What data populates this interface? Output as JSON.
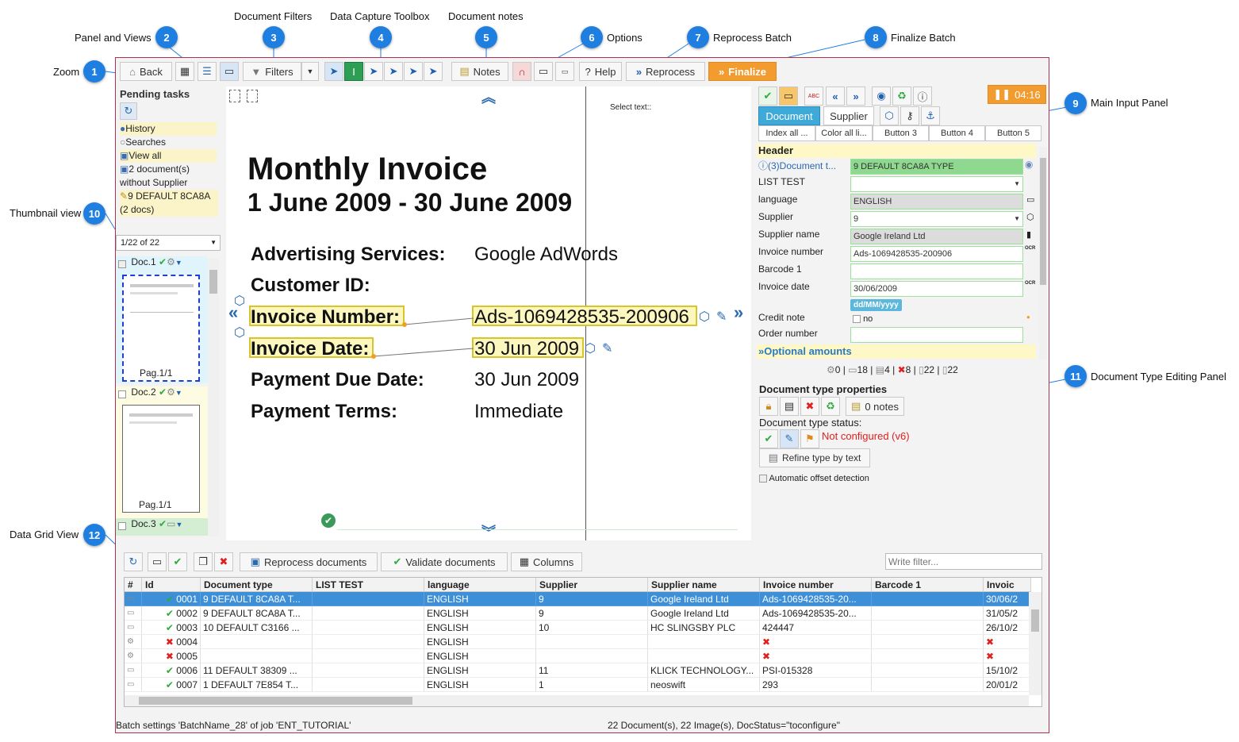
{
  "callouts": [
    {
      "n": "1",
      "label": "Zoom"
    },
    {
      "n": "2",
      "label": "Panel and Views"
    },
    {
      "n": "3",
      "label": "Document Filters"
    },
    {
      "n": "4",
      "label": "Data Capture Toolbox"
    },
    {
      "n": "5",
      "label": "Document notes"
    },
    {
      "n": "6",
      "label": "Options"
    },
    {
      "n": "7",
      "label": "Reprocess Batch"
    },
    {
      "n": "8",
      "label": "Finalize Batch"
    },
    {
      "n": "9",
      "label": "Main Input Panel"
    },
    {
      "n": "10",
      "label": "Thumbnail view"
    },
    {
      "n": "11",
      "label": "Document Type Editing Panel"
    },
    {
      "n": "12",
      "label": "Data Grid View"
    }
  ],
  "toolbar": {
    "back": "Back",
    "filters": "Filters",
    "notes": "Notes",
    "help": "Help",
    "reprocess": "Reprocess",
    "finalize": "Finalize",
    "timer": "04:16"
  },
  "left": {
    "pending_title": "Pending tasks",
    "items": [
      "History",
      "Searches",
      "View all",
      "2 document(s) without Supplier",
      "9 DEFAULT 8CA8A (2 docs)"
    ],
    "page_select": "1/22 of 22",
    "docs": [
      {
        "label": "Doc.1",
        "page": "Pag.1/1"
      },
      {
        "label": "Doc.2",
        "page": "Pag.1/1"
      },
      {
        "label": "Doc.3"
      }
    ]
  },
  "viewer": {
    "select_text": "Select text::",
    "title": "Monthly Invoice",
    "period": "1 June 2009 - 30 June 2009",
    "lines": [
      {
        "label": "Advertising Services:",
        "value": "Google AdWords"
      },
      {
        "label": "Customer ID:",
        "value": ""
      },
      {
        "label": "Invoice Number:",
        "value": "Ads-1069428535-200906"
      },
      {
        "label": "Invoice Date:",
        "value": "30 Jun 2009"
      },
      {
        "label": "Payment Due Date:",
        "value": "30 Jun 2009"
      },
      {
        "label": "Payment Terms:",
        "value": "Immediate"
      }
    ]
  },
  "right": {
    "tabs": [
      "Document",
      "Supplier"
    ],
    "buttons": [
      "Index all ...",
      "Color all li...",
      "Button 3",
      "Button 4",
      "Button 5"
    ],
    "header": "Header",
    "fields": [
      {
        "label": "(3)Document t...",
        "value": "9 DEFAULT 8CA8A TYPE"
      },
      {
        "label": "LIST TEST",
        "value": ""
      },
      {
        "label": "language",
        "value": "ENGLISH"
      },
      {
        "label": "Supplier",
        "value": "9"
      },
      {
        "label": "Supplier name",
        "value": "Google Ireland Ltd"
      },
      {
        "label": "Invoice number",
        "value": "Ads-1069428535-200906"
      },
      {
        "label": "Barcode 1",
        "value": ""
      },
      {
        "label": "Invoice date",
        "value": "30/06/2009"
      }
    ],
    "date_hint": "dd/MM/yyyy",
    "credit_note": "Credit note",
    "credit_no": "no",
    "order_number": "Order number",
    "optional": "Optional amounts",
    "stats": [
      "0",
      "18",
      "4",
      "8",
      "22",
      "22"
    ],
    "ocr": "OCR",
    "dt_title": "Document type properties",
    "notes": "0 notes",
    "status_label": "Document type status:",
    "status_value": "Not configured (v6)",
    "refine": "Refine type by text",
    "auto_offset": "Automatic offset detection"
  },
  "gridbar": {
    "reprocess": "Reprocess documents",
    "validate": "Validate documents",
    "columns": "Columns",
    "filter_placeholder": "Write filter..."
  },
  "grid": {
    "headers": [
      "#",
      "Id",
      "Document type",
      "LIST TEST",
      "language",
      "Supplier",
      "Supplier name",
      "Invoice number",
      "Barcode 1",
      "Invoic"
    ],
    "rows": [
      {
        "ok": true,
        "id": "0001",
        "type": "9 DEFAULT 8CA8A T...",
        "lang": "ENGLISH",
        "sup": "9",
        "name": "Google Ireland Ltd",
        "inv": "Ads-1069428535-20...",
        "date": "30/06/2"
      },
      {
        "ok": true,
        "id": "0002",
        "type": "9 DEFAULT 8CA8A T...",
        "lang": "ENGLISH",
        "sup": "9",
        "name": "Google Ireland Ltd",
        "inv": "Ads-1069428535-20...",
        "date": "31/05/2"
      },
      {
        "ok": true,
        "id": "0003",
        "type": "10 DEFAULT C3166 ...",
        "lang": "ENGLISH",
        "sup": "10",
        "name": "HC SLINGSBY PLC",
        "inv": "424447",
        "date": "26/10/2"
      },
      {
        "ok": false,
        "id": "0004",
        "type": "",
        "lang": "ENGLISH",
        "sup": "",
        "name": "",
        "inv": "",
        "date": ""
      },
      {
        "ok": false,
        "id": "0005",
        "type": "",
        "lang": "ENGLISH",
        "sup": "",
        "name": "",
        "inv": "",
        "date": ""
      },
      {
        "ok": true,
        "id": "0006",
        "type": "11 DEFAULT 38309 ...",
        "lang": "ENGLISH",
        "sup": "11",
        "name": "KLICK TECHNOLOGY...",
        "inv": "PSI-015328",
        "date": "15/10/2"
      },
      {
        "ok": true,
        "id": "0007",
        "type": "1 DEFAULT 7E854 T...",
        "lang": "ENGLISH",
        "sup": "1",
        "name": "neoswift",
        "inv": "293",
        "date": "20/01/2"
      }
    ]
  },
  "status": {
    "left": "Batch settings 'BatchName_28' of job 'ENT_TUTORIAL'",
    "right": "22 Document(s), 22 Image(s), DocStatus=\"toconfigure\""
  },
  "colors": {
    "accent": "#1f7fe0",
    "finalize": "#f29b2e",
    "selected": "#3d8fd8",
    "error": "#e02020"
  }
}
